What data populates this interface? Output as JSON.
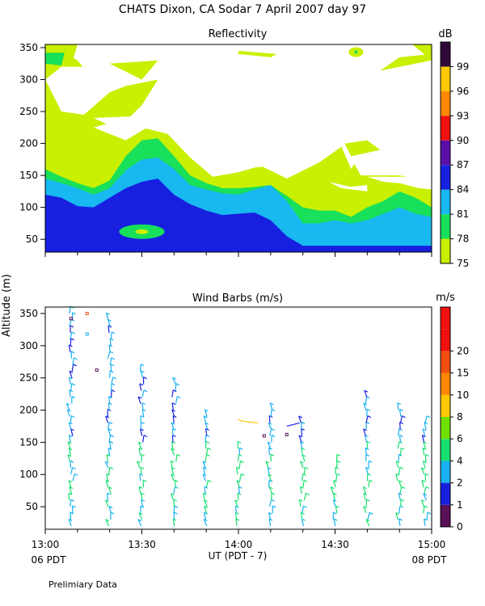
{
  "figure": {
    "title": "CHATS Dixon, CA  Sodar    7 April 2007   day  97",
    "ylabel": "Altitude  (m)",
    "xlabel": "UT  (PDT - 7)",
    "left_note": "06 PDT",
    "right_note": "08 PDT",
    "footer": "Prelimiary Data"
  },
  "chart_data": [
    {
      "type": "heatmap",
      "title": "Reflectivity",
      "x_ticks": [
        "13:00",
        "13:30",
        "14:00",
        "14:30",
        "15:00"
      ],
      "y_ticks": [
        50,
        100,
        150,
        200,
        250,
        300,
        350
      ],
      "xlim_minutes": [
        0,
        120
      ],
      "ylim": [
        30,
        355
      ],
      "colorbar_unit": "dB",
      "colorbar_levels": [
        75,
        78,
        81,
        84,
        87,
        90,
        93,
        96,
        99
      ],
      "colorbar_colors": [
        "#c8f000",
        "#18e05a",
        "#18b8f0",
        "#1820e0",
        "#5a10a8",
        "#f01010",
        "#ff8800",
        "#ffc800",
        "#300838"
      ],
      "bands": [
        {
          "level": 75,
          "color": "#c8f000",
          "top": [
            [
              0,
              190
            ],
            [
              5,
              180
            ],
            [
              10,
              160
            ],
            [
              15,
              145
            ],
            [
              20,
              165
            ],
            [
              25,
              215
            ],
            [
              30,
              225
            ],
            [
              35,
              235
            ],
            [
              40,
              215
            ],
            [
              45,
              165
            ],
            [
              50,
              148
            ],
            [
              55,
              138
            ],
            [
              60,
              142
            ],
            [
              65,
              150
            ],
            [
              70,
              162
            ],
            [
              75,
              145
            ],
            [
              80,
              132
            ],
            [
              85,
              125
            ],
            [
              90,
              125
            ],
            [
              95,
              120
            ],
            [
              100,
              130
            ],
            [
              105,
              128
            ],
            [
              110,
              120
            ],
            [
              115,
              122
            ],
            [
              120,
              118
            ]
          ]
        },
        {
          "level": 78,
          "color": "#18e05a",
          "top": [
            [
              0,
              160
            ],
            [
              5,
              148
            ],
            [
              10,
              138
            ],
            [
              15,
              130
            ],
            [
              20,
              142
            ],
            [
              25,
              180
            ],
            [
              30,
              205
            ],
            [
              35,
              208
            ],
            [
              40,
              180
            ],
            [
              45,
              150
            ],
            [
              50,
              138
            ],
            [
              55,
              130
            ],
            [
              60,
              130
            ],
            [
              65,
              132
            ],
            [
              70,
              135
            ],
            [
              75,
              118
            ],
            [
              80,
              100
            ],
            [
              85,
              95
            ],
            [
              90,
              95
            ],
            [
              95,
              85
            ],
            [
              100,
              100
            ],
            [
              105,
              110
            ],
            [
              110,
              125
            ],
            [
              115,
              115
            ],
            [
              120,
              100
            ]
          ]
        },
        {
          "level": 81,
          "color": "#18b8f0",
          "top": [
            [
              0,
              145
            ],
            [
              5,
              138
            ],
            [
              10,
              130
            ],
            [
              15,
              120
            ],
            [
              20,
              130
            ],
            [
              25,
              158
            ],
            [
              30,
              175
            ],
            [
              35,
              178
            ],
            [
              40,
              160
            ],
            [
              45,
              135
            ],
            [
              50,
              128
            ],
            [
              55,
              122
            ],
            [
              60,
              120
            ],
            [
              65,
              128
            ],
            [
              70,
              135
            ],
            [
              75,
              110
            ],
            [
              80,
              75
            ],
            [
              85,
              75
            ],
            [
              90,
              80
            ],
            [
              95,
              75
            ],
            [
              100,
              80
            ],
            [
              105,
              90
            ],
            [
              110,
              100
            ],
            [
              115,
              90
            ],
            [
              120,
              85
            ]
          ]
        },
        {
          "level": 84,
          "color": "#1820e0",
          "top": [
            [
              0,
              120
            ],
            [
              5,
              115
            ],
            [
              10,
              102
            ],
            [
              15,
              100
            ],
            [
              20,
              115
            ],
            [
              25,
              130
            ],
            [
              30,
              140
            ],
            [
              35,
              145
            ],
            [
              40,
              120
            ],
            [
              45,
              105
            ],
            [
              50,
              95
            ],
            [
              55,
              88
            ],
            [
              60,
              90
            ],
            [
              65,
              92
            ],
            [
              70,
              80
            ],
            [
              75,
              55
            ],
            [
              80,
              40
            ],
            [
              120,
              40
            ]
          ]
        }
      ],
      "cloud_band_top": [
        [
          0,
          355
        ],
        [
          10,
          355
        ],
        [
          20,
          355
        ],
        [
          30,
          355
        ],
        [
          40,
          355
        ],
        [
          50,
          355
        ],
        [
          60,
          355
        ],
        [
          70,
          355
        ],
        [
          80,
          355
        ],
        [
          90,
          355
        ],
        [
          100,
          355
        ],
        [
          110,
          355
        ],
        [
          120,
          355
        ]
      ],
      "white_patches": "irregular clear regions between 230 and 340 m"
    },
    {
      "type": "scatter",
      "title": "Wind Barbs (m/s)",
      "x_ticks": [
        "13:00",
        "13:30",
        "14:00",
        "14:30",
        "15:00"
      ],
      "y_ticks": [
        50,
        100,
        150,
        200,
        250,
        300,
        350
      ],
      "xlim_minutes": [
        0,
        120
      ],
      "ylim": [
        15,
        360
      ],
      "colorbar_unit": "m/s",
      "colorbar_levels": [
        0,
        1,
        2,
        4,
        6,
        8,
        10,
        15,
        20
      ],
      "colorbar_colors": [
        "#5a1058",
        "#1820e0",
        "#18b0f0",
        "#18e070",
        "#70e000",
        "#ffc800",
        "#ff8800",
        "#f05010",
        "#f01010"
      ],
      "profile_times_minutes": [
        8,
        20,
        30,
        40,
        50,
        60,
        70,
        80,
        90,
        100,
        110,
        118
      ],
      "profile_top_m": [
        350,
        345,
        260,
        240,
        190,
        140,
        200,
        180,
        125,
        220,
        200,
        180
      ]
    }
  ]
}
